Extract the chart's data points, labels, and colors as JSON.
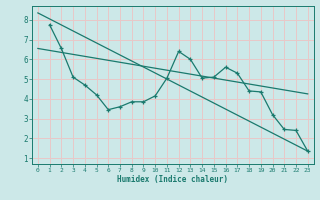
{
  "xlabel": "Humidex (Indice chaleur)",
  "bg_color": "#cce8e8",
  "grid_color": "#e8c8c8",
  "line_color": "#1a7a6e",
  "xlim": [
    -0.5,
    23.5
  ],
  "ylim": [
    0.7,
    8.7
  ],
  "xticks": [
    0,
    1,
    2,
    3,
    4,
    5,
    6,
    7,
    8,
    9,
    10,
    11,
    12,
    13,
    14,
    15,
    16,
    17,
    18,
    19,
    20,
    21,
    22,
    23
  ],
  "yticks": [
    1,
    2,
    3,
    4,
    5,
    6,
    7,
    8
  ],
  "line1_x": [
    0,
    23
  ],
  "line1_y": [
    8.35,
    1.35
  ],
  "line2_x": [
    0,
    23
  ],
  "line2_y": [
    6.55,
    4.25
  ],
  "line3_x": [
    1,
    2,
    3,
    4,
    5,
    6,
    7,
    8,
    9,
    10,
    11,
    12,
    13,
    14,
    15,
    16,
    17,
    18,
    19,
    20,
    21,
    22,
    23
  ],
  "line3_y": [
    7.75,
    6.55,
    5.1,
    4.7,
    4.2,
    3.45,
    3.6,
    3.85,
    3.85,
    4.15,
    5.05,
    6.4,
    6.0,
    5.05,
    5.1,
    5.6,
    5.3,
    4.4,
    4.35,
    3.2,
    2.45,
    2.4,
    1.35
  ]
}
